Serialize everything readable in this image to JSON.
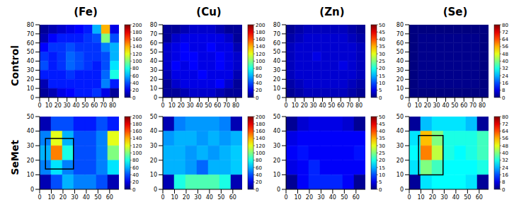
{
  "column_titles": [
    "(Fe)",
    "(Cu)",
    "(Zn)",
    "(Se)"
  ],
  "row_titles": [
    "Control",
    "SeMet"
  ],
  "chart_data": [
    {
      "type": "heatmap",
      "xlim": [
        0,
        87
      ],
      "ylim": [
        0,
        80
      ],
      "xticks": [
        0,
        10,
        20,
        30,
        40,
        50,
        60,
        70,
        80
      ],
      "yticks": [
        0,
        10,
        20,
        30,
        40,
        50,
        60,
        70,
        80
      ],
      "colorbar": {
        "range": [
          0,
          200
        ],
        "ticks": [
          0,
          20,
          40,
          60,
          80,
          100,
          120,
          140,
          160,
          180,
          200
        ]
      },
      "cells": [
        [
          5,
          10,
          15,
          20,
          25,
          30,
          60,
          140,
          20
        ],
        [
          10,
          25,
          30,
          30,
          30,
          35,
          40,
          100,
          40
        ],
        [
          25,
          35,
          35,
          40,
          35,
          35,
          35,
          50,
          60
        ],
        [
          35,
          30,
          35,
          45,
          40,
          35,
          35,
          40,
          60
        ],
        [
          40,
          30,
          35,
          45,
          40,
          35,
          30,
          40,
          70
        ],
        [
          30,
          30,
          30,
          35,
          30,
          30,
          30,
          45,
          80
        ],
        [
          10,
          30,
          30,
          30,
          30,
          30,
          30,
          50,
          30
        ],
        [
          5,
          10,
          20,
          25,
          30,
          30,
          35,
          20,
          5
        ]
      ]
    },
    {
      "type": "heatmap",
      "xlim": [
        0,
        87
      ],
      "ylim": [
        0,
        80
      ],
      "xticks": [
        0,
        10,
        20,
        30,
        40,
        50,
        60,
        70,
        80
      ],
      "yticks": [
        0,
        10,
        20,
        30,
        40,
        50,
        60,
        70,
        80
      ],
      "colorbar": {
        "range": [
          0,
          200
        ],
        "ticks": [
          0,
          20,
          40,
          60,
          80,
          100,
          120,
          140,
          160,
          180,
          200
        ]
      },
      "cells": [
        [
          5,
          5,
          10,
          15,
          15,
          15,
          10,
          5,
          5
        ],
        [
          5,
          15,
          20,
          20,
          20,
          20,
          20,
          15,
          5
        ],
        [
          15,
          20,
          25,
          20,
          20,
          25,
          20,
          20,
          10
        ],
        [
          15,
          20,
          25,
          25,
          20,
          20,
          25,
          20,
          15
        ],
        [
          15,
          25,
          20,
          25,
          20,
          20,
          25,
          20,
          15
        ],
        [
          10,
          20,
          20,
          20,
          25,
          20,
          20,
          20,
          10
        ],
        [
          5,
          15,
          20,
          20,
          20,
          20,
          25,
          15,
          5
        ],
        [
          5,
          5,
          10,
          15,
          15,
          15,
          10,
          5,
          5
        ]
      ]
    },
    {
      "type": "heatmap",
      "xlim": [
        0,
        87
      ],
      "ylim": [
        0,
        80
      ],
      "xticks": [
        0,
        10,
        20,
        30,
        40,
        50,
        60,
        70,
        80
      ],
      "yticks": [
        0,
        10,
        20,
        30,
        40,
        50,
        60,
        70,
        80
      ],
      "colorbar": {
        "range": [
          0,
          50
        ],
        "ticks": [
          0,
          5,
          10,
          15,
          20,
          25,
          30,
          35,
          40,
          45,
          50
        ]
      },
      "cells": [
        [
          1,
          2,
          3,
          3,
          3,
          3,
          3,
          2,
          1
        ],
        [
          2,
          3,
          4,
          4,
          4,
          4,
          4,
          3,
          2
        ],
        [
          3,
          4,
          4,
          4,
          4,
          4,
          4,
          4,
          3
        ],
        [
          3,
          4,
          4,
          5,
          4,
          4,
          4,
          4,
          3
        ],
        [
          3,
          4,
          4,
          4,
          4,
          4,
          5,
          4,
          3
        ],
        [
          3,
          4,
          4,
          4,
          4,
          4,
          4,
          4,
          3
        ],
        [
          2,
          3,
          4,
          4,
          4,
          4,
          4,
          3,
          2
        ],
        [
          1,
          2,
          3,
          3,
          3,
          3,
          3,
          2,
          1
        ]
      ]
    },
    {
      "type": "heatmap",
      "xlim": [
        0,
        87
      ],
      "ylim": [
        0,
        80
      ],
      "xticks": [
        0,
        10,
        20,
        30,
        40,
        50,
        60,
        70,
        80
      ],
      "yticks": [
        0,
        10,
        20,
        30,
        40,
        50,
        60,
        70,
        80
      ],
      "colorbar": {
        "range": [
          0,
          80
        ],
        "ticks": [
          0,
          8,
          16,
          24,
          32,
          40,
          48,
          56,
          64,
          72,
          80
        ]
      },
      "cells": [
        [
          0,
          0,
          0,
          0,
          0,
          0,
          0,
          0,
          0
        ],
        [
          0,
          1,
          1,
          1,
          1,
          1,
          1,
          1,
          0
        ],
        [
          0,
          1,
          1,
          1,
          1,
          1,
          1,
          1,
          0
        ],
        [
          0,
          1,
          1,
          1,
          1,
          1,
          1,
          1,
          0
        ],
        [
          0,
          1,
          1,
          1,
          1,
          1,
          1,
          1,
          0
        ],
        [
          0,
          1,
          1,
          1,
          1,
          1,
          1,
          1,
          0
        ],
        [
          0,
          1,
          1,
          1,
          1,
          1,
          1,
          1,
          0
        ],
        [
          0,
          0,
          0,
          0,
          0,
          0,
          0,
          0,
          0
        ]
      ]
    },
    {
      "type": "heatmap",
      "xlim": [
        0,
        68
      ],
      "ylim": [
        0,
        50
      ],
      "xticks": [
        0,
        10,
        20,
        30,
        40,
        50,
        60
      ],
      "yticks": [
        0,
        10,
        20,
        30,
        40,
        50
      ],
      "colorbar": {
        "range": [
          0,
          200
        ],
        "ticks": [
          0,
          20,
          40,
          60,
          80,
          100,
          120,
          140,
          160,
          180,
          200
        ]
      },
      "box": [
        5,
        14,
        29,
        35
      ],
      "cells": [
        [
          10,
          40,
          40,
          30,
          30,
          40,
          30
        ],
        [
          50,
          120,
          60,
          40,
          40,
          50,
          120
        ],
        [
          60,
          150,
          80,
          40,
          40,
          50,
          100
        ],
        [
          50,
          70,
          50,
          40,
          40,
          50,
          70
        ],
        [
          10,
          40,
          60,
          50,
          50,
          40,
          10
        ]
      ]
    },
    {
      "type": "heatmap",
      "xlim": [
        0,
        68
      ],
      "ylim": [
        0,
        50
      ],
      "xticks": [
        0,
        10,
        20,
        30,
        40,
        50,
        60
      ],
      "yticks": [
        0,
        10,
        20,
        30,
        40,
        50
      ],
      "colorbar": {
        "range": [
          0,
          200
        ],
        "ticks": [
          0,
          20,
          40,
          60,
          80,
          100,
          120,
          140,
          160,
          180,
          200
        ]
      },
      "cells": [
        [
          10,
          50,
          55,
          55,
          55,
          50,
          10
        ],
        [
          55,
          60,
          60,
          55,
          60,
          55,
          60
        ],
        [
          60,
          60,
          55,
          60,
          55,
          60,
          65
        ],
        [
          60,
          60,
          55,
          45,
          60,
          60,
          65
        ],
        [
          10,
          80,
          90,
          90,
          90,
          80,
          10
        ]
      ]
    },
    {
      "type": "heatmap",
      "xlim": [
        0,
        68
      ],
      "ylim": [
        0,
        50
      ],
      "xticks": [
        0,
        10,
        20,
        30,
        40,
        50,
        60
      ],
      "yticks": [
        0,
        10,
        20,
        30,
        40,
        50
      ],
      "colorbar": {
        "range": [
          0,
          50
        ],
        "ticks": [
          0,
          5,
          10,
          15,
          20,
          25,
          30,
          35,
          40,
          45,
          50
        ]
      },
      "cells": [
        [
          1,
          4,
          5,
          5,
          5,
          4,
          1
        ],
        [
          5,
          6,
          6,
          6,
          6,
          6,
          6
        ],
        [
          6,
          7,
          6,
          6,
          6,
          6,
          7
        ],
        [
          5,
          6,
          8,
          6,
          6,
          6,
          6
        ],
        [
          1,
          6,
          8,
          8,
          8,
          6,
          1
        ]
      ]
    },
    {
      "type": "heatmap",
      "xlim": [
        0,
        68
      ],
      "ylim": [
        0,
        50
      ],
      "xticks": [
        0,
        10,
        20,
        30,
        40,
        50,
        60
      ],
      "yticks": [
        0,
        10,
        20,
        30,
        40,
        50
      ],
      "colorbar": {
        "range": [
          0,
          80
        ],
        "ticks": [
          0,
          8,
          16,
          24,
          32,
          40,
          48,
          56,
          64,
          72,
          80
        ]
      },
      "box": [
        8,
        10,
        29,
        37
      ],
      "cells": [
        [
          2,
          25,
          28,
          28,
          28,
          25,
          2
        ],
        [
          28,
          55,
          40,
          32,
          32,
          32,
          35
        ],
        [
          30,
          60,
          45,
          32,
          30,
          32,
          35
        ],
        [
          28,
          40,
          35,
          30,
          30,
          30,
          32
        ],
        [
          2,
          28,
          30,
          30,
          30,
          28,
          2
        ]
      ]
    }
  ]
}
